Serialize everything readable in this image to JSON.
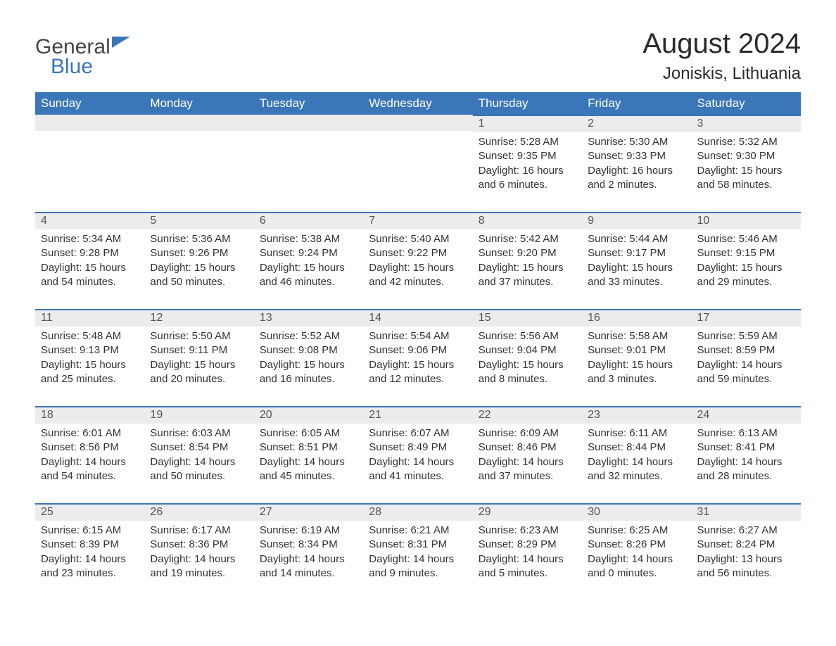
{
  "logo": {
    "word1": "General",
    "word2": "Blue"
  },
  "title": "August 2024",
  "location": "Joniskis, Lithuania",
  "colors": {
    "header_bg": "#3a76b8",
    "header_text": "#ffffff",
    "daynum_bg": "#ececec",
    "daynum_border": "#3a76b8",
    "body_text": "#333333",
    "page_bg": "#ffffff"
  },
  "weekdays": [
    "Sunday",
    "Monday",
    "Tuesday",
    "Wednesday",
    "Thursday",
    "Friday",
    "Saturday"
  ],
  "weeks": [
    [
      null,
      null,
      null,
      null,
      {
        "d": "1",
        "sr": "5:28 AM",
        "ss": "9:35 PM",
        "dl": "16 hours and 6 minutes."
      },
      {
        "d": "2",
        "sr": "5:30 AM",
        "ss": "9:33 PM",
        "dl": "16 hours and 2 minutes."
      },
      {
        "d": "3",
        "sr": "5:32 AM",
        "ss": "9:30 PM",
        "dl": "15 hours and 58 minutes."
      }
    ],
    [
      {
        "d": "4",
        "sr": "5:34 AM",
        "ss": "9:28 PM",
        "dl": "15 hours and 54 minutes."
      },
      {
        "d": "5",
        "sr": "5:36 AM",
        "ss": "9:26 PM",
        "dl": "15 hours and 50 minutes."
      },
      {
        "d": "6",
        "sr": "5:38 AM",
        "ss": "9:24 PM",
        "dl": "15 hours and 46 minutes."
      },
      {
        "d": "7",
        "sr": "5:40 AM",
        "ss": "9:22 PM",
        "dl": "15 hours and 42 minutes."
      },
      {
        "d": "8",
        "sr": "5:42 AM",
        "ss": "9:20 PM",
        "dl": "15 hours and 37 minutes."
      },
      {
        "d": "9",
        "sr": "5:44 AM",
        "ss": "9:17 PM",
        "dl": "15 hours and 33 minutes."
      },
      {
        "d": "10",
        "sr": "5:46 AM",
        "ss": "9:15 PM",
        "dl": "15 hours and 29 minutes."
      }
    ],
    [
      {
        "d": "11",
        "sr": "5:48 AM",
        "ss": "9:13 PM",
        "dl": "15 hours and 25 minutes."
      },
      {
        "d": "12",
        "sr": "5:50 AM",
        "ss": "9:11 PM",
        "dl": "15 hours and 20 minutes."
      },
      {
        "d": "13",
        "sr": "5:52 AM",
        "ss": "9:08 PM",
        "dl": "15 hours and 16 minutes."
      },
      {
        "d": "14",
        "sr": "5:54 AM",
        "ss": "9:06 PM",
        "dl": "15 hours and 12 minutes."
      },
      {
        "d": "15",
        "sr": "5:56 AM",
        "ss": "9:04 PM",
        "dl": "15 hours and 8 minutes."
      },
      {
        "d": "16",
        "sr": "5:58 AM",
        "ss": "9:01 PM",
        "dl": "15 hours and 3 minutes."
      },
      {
        "d": "17",
        "sr": "5:59 AM",
        "ss": "8:59 PM",
        "dl": "14 hours and 59 minutes."
      }
    ],
    [
      {
        "d": "18",
        "sr": "6:01 AM",
        "ss": "8:56 PM",
        "dl": "14 hours and 54 minutes."
      },
      {
        "d": "19",
        "sr": "6:03 AM",
        "ss": "8:54 PM",
        "dl": "14 hours and 50 minutes."
      },
      {
        "d": "20",
        "sr": "6:05 AM",
        "ss": "8:51 PM",
        "dl": "14 hours and 45 minutes."
      },
      {
        "d": "21",
        "sr": "6:07 AM",
        "ss": "8:49 PM",
        "dl": "14 hours and 41 minutes."
      },
      {
        "d": "22",
        "sr": "6:09 AM",
        "ss": "8:46 PM",
        "dl": "14 hours and 37 minutes."
      },
      {
        "d": "23",
        "sr": "6:11 AM",
        "ss": "8:44 PM",
        "dl": "14 hours and 32 minutes."
      },
      {
        "d": "24",
        "sr": "6:13 AM",
        "ss": "8:41 PM",
        "dl": "14 hours and 28 minutes."
      }
    ],
    [
      {
        "d": "25",
        "sr": "6:15 AM",
        "ss": "8:39 PM",
        "dl": "14 hours and 23 minutes."
      },
      {
        "d": "26",
        "sr": "6:17 AM",
        "ss": "8:36 PM",
        "dl": "14 hours and 19 minutes."
      },
      {
        "d": "27",
        "sr": "6:19 AM",
        "ss": "8:34 PM",
        "dl": "14 hours and 14 minutes."
      },
      {
        "d": "28",
        "sr": "6:21 AM",
        "ss": "8:31 PM",
        "dl": "14 hours and 9 minutes."
      },
      {
        "d": "29",
        "sr": "6:23 AM",
        "ss": "8:29 PM",
        "dl": "14 hours and 5 minutes."
      },
      {
        "d": "30",
        "sr": "6:25 AM",
        "ss": "8:26 PM",
        "dl": "14 hours and 0 minutes."
      },
      {
        "d": "31",
        "sr": "6:27 AM",
        "ss": "8:24 PM",
        "dl": "13 hours and 56 minutes."
      }
    ]
  ],
  "labels": {
    "sunrise": "Sunrise:",
    "sunset": "Sunset:",
    "daylight": "Daylight:"
  }
}
